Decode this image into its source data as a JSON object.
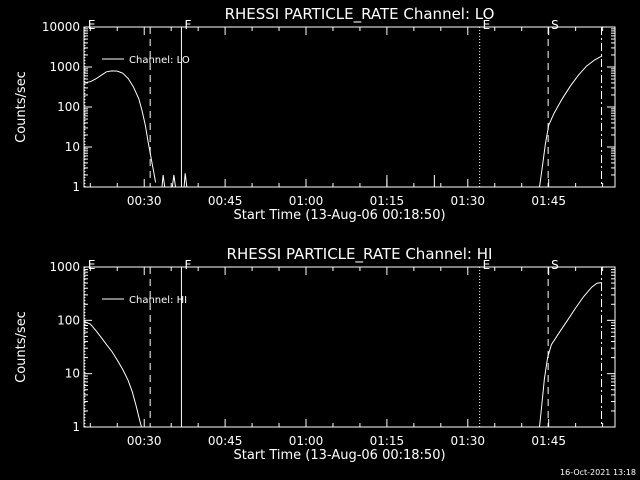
{
  "timestamp": "16-Oct-2021 13:18",
  "chart_data": [
    {
      "type": "line",
      "title": "RHESSI PARTICLE_RATE Channel: LO",
      "xlabel": "Start Time (13-Aug-06 00:18:50)",
      "ylabel": "Counts/sec",
      "y_scale": "log",
      "ylim": [
        1,
        10000
      ],
      "xlim_minutes": [
        18.83,
        117.3
      ],
      "x_ticks": [
        {
          "min": 30,
          "label": "00:30"
        },
        {
          "min": 45,
          "label": "00:45"
        },
        {
          "min": 60,
          "label": "01:00"
        },
        {
          "min": 75,
          "label": "01:15"
        },
        {
          "min": 90,
          "label": "01:30"
        },
        {
          "min": 105,
          "label": "01:45"
        }
      ],
      "y_ticks": [
        {
          "v": 1,
          "label": "1"
        },
        {
          "v": 10,
          "label": "10"
        },
        {
          "v": 100,
          "label": "100"
        },
        {
          "v": 1000,
          "label": "1000"
        },
        {
          "v": 10000,
          "label": "10000"
        }
      ],
      "legend": {
        "label": "Channel: LO",
        "placement": "top-left"
      },
      "event_markers": [
        {
          "min": 19.0,
          "label": "E",
          "style": "dotted"
        },
        {
          "min": 31.1,
          "label": "",
          "style": "dashed"
        },
        {
          "min": 36.9,
          "label": "F",
          "style": "solid"
        },
        {
          "min": 92.2,
          "label": "E",
          "style": "dotted"
        },
        {
          "min": 104.9,
          "label": "S",
          "style": "dashed"
        },
        {
          "min": 114.8,
          "label": "",
          "style": "dashdot"
        }
      ],
      "series": [
        {
          "segments": [
            [
              [
                18.83,
                400
              ],
              [
                20,
                430
              ],
              [
                21,
                500
              ],
              [
                22,
                620
              ],
              [
                23,
                760
              ],
              [
                24,
                800
              ],
              [
                25,
                790
              ],
              [
                26,
                700
              ],
              [
                27,
                520
              ],
              [
                28,
                320
              ],
              [
                29,
                160
              ],
              [
                29.6,
                80
              ],
              [
                30.2,
                35
              ],
              [
                30.7,
                14
              ],
              [
                31.2,
                6
              ],
              [
                31.7,
                2.6
              ],
              [
                32.1,
                1.3
              ]
            ],
            [
              [
                33.3,
                1
              ],
              [
                33.5,
                2
              ],
              [
                33.8,
                1
              ]
            ],
            [
              [
                35.2,
                1
              ],
              [
                35.5,
                2
              ],
              [
                35.8,
                1
              ]
            ],
            [
              [
                37.4,
                1
              ],
              [
                37.6,
                2.2
              ],
              [
                37.9,
                1
              ]
            ],
            [
              [
                103.3,
                1
              ],
              [
                103.8,
                3
              ],
              [
                104.4,
                12
              ],
              [
                105.0,
                35
              ],
              [
                106.0,
                70
              ],
              [
                107.5,
                160
              ],
              [
                109,
                330
              ],
              [
                110.5,
                620
              ],
              [
                112,
                1050
              ],
              [
                113.5,
                1500
              ],
              [
                114.6,
                1800
              ],
              [
                114.9,
                1850
              ]
            ]
          ],
          "spikes": [
            {
              "min": 75.0,
              "v": 2
            },
            {
              "min": 83.8,
              "v": 2
            }
          ]
        }
      ]
    },
    {
      "type": "line",
      "title": "RHESSI PARTICLE_RATE Channel: HI",
      "xlabel": "Start Time (13-Aug-06 00:18:50)",
      "ylabel": "Counts/sec",
      "y_scale": "log",
      "ylim": [
        1,
        1000
      ],
      "xlim_minutes": [
        18.83,
        117.3
      ],
      "x_ticks": [
        {
          "min": 30,
          "label": "00:30"
        },
        {
          "min": 45,
          "label": "00:45"
        },
        {
          "min": 60,
          "label": "01:00"
        },
        {
          "min": 75,
          "label": "01:15"
        },
        {
          "min": 90,
          "label": "01:30"
        },
        {
          "min": 105,
          "label": "01:45"
        }
      ],
      "y_ticks": [
        {
          "v": 1,
          "label": "1"
        },
        {
          "v": 10,
          "label": "10"
        },
        {
          "v": 100,
          "label": "100"
        },
        {
          "v": 1000,
          "label": "1000"
        }
      ],
      "legend": {
        "label": "Channel: HI",
        "placement": "top-left"
      },
      "event_markers": [
        {
          "min": 19.0,
          "label": "E",
          "style": "dotted"
        },
        {
          "min": 31.1,
          "label": "",
          "style": "dashed"
        },
        {
          "min": 36.9,
          "label": "F",
          "style": "solid"
        },
        {
          "min": 92.2,
          "label": "E",
          "style": "dotted"
        },
        {
          "min": 104.9,
          "label": "S",
          "style": "dashed"
        },
        {
          "min": 114.8,
          "label": "",
          "style": "dashdot"
        }
      ],
      "series": [
        {
          "segments": [
            [
              [
                18.83,
                95
              ],
              [
                20,
                85
              ],
              [
                21,
                65
              ],
              [
                22,
                48
              ],
              [
                23,
                35
              ],
              [
                24,
                26
              ],
              [
                25,
                18
              ],
              [
                26,
                12
              ],
              [
                27,
                7.5
              ],
              [
                27.8,
                4.5
              ],
              [
                28.5,
                2.5
              ],
              [
                29.1,
                1.4
              ],
              [
                29.5,
                1
              ]
            ],
            [
              [
                103.3,
                1
              ],
              [
                103.7,
                2.5
              ],
              [
                104.2,
                8
              ],
              [
                104.8,
                20
              ],
              [
                105.5,
                35
              ],
              [
                107,
                60
              ],
              [
                108.5,
                100
              ],
              [
                110,
                170
              ],
              [
                111.5,
                280
              ],
              [
                113,
                420
              ],
              [
                114,
                500
              ],
              [
                114.9,
                510
              ]
            ]
          ],
          "spikes": []
        }
      ]
    }
  ]
}
